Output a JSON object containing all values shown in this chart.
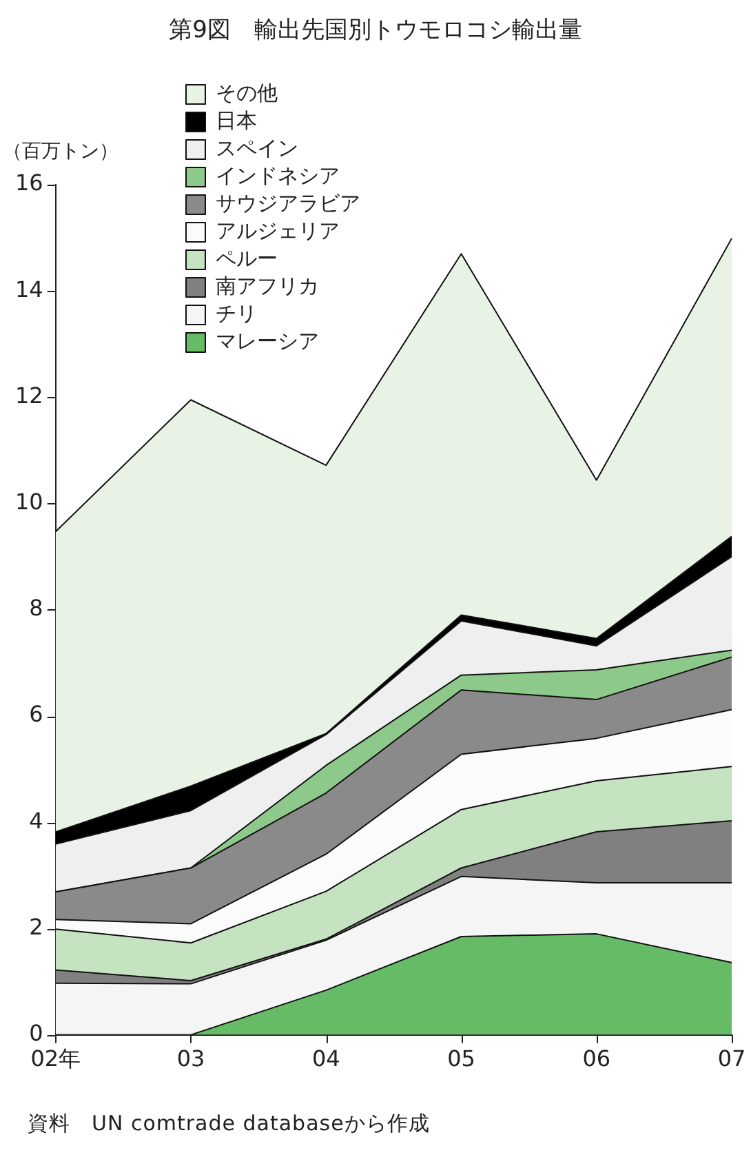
{
  "chart_data": {
    "type": "area",
    "title": "第9図　輸出先国別トウモロコシ輸出量",
    "ylabel": "（百万トン）",
    "stacked": true,
    "categories": [
      "02年",
      "03",
      "04",
      "05",
      "06",
      "07"
    ],
    "ylim": [
      0,
      16
    ],
    "yticks": [
      0,
      2,
      4,
      6,
      8,
      10,
      12,
      14,
      16
    ],
    "grid": false,
    "legend": "top left",
    "marker": "none",
    "series": [
      {
        "name": "マレーシア",
        "color": "#66bb66",
        "values": [
          0,
          0,
          0.84,
          1.85,
          1.9,
          1.36
        ]
      },
      {
        "name": "チリ",
        "color": "#f5f5f5",
        "values": [
          0.97,
          0.96,
          0.94,
          1.13,
          0.96,
          1.5
        ]
      },
      {
        "name": "南アフリカ",
        "color": "#808080",
        "values": [
          0.25,
          0.06,
          0.02,
          0.16,
          0.96,
          1.17
        ]
      },
      {
        "name": "ペルー",
        "color": "#c5e3c0",
        "values": [
          0.77,
          0.71,
          0.9,
          1.1,
          0.96,
          1.02
        ]
      },
      {
        "name": "アルジェリア",
        "color": "#fbfbfb",
        "values": [
          0.18,
          0.36,
          0.7,
          1.04,
          0.8,
          1.07
        ]
      },
      {
        "name": "サウジアラビア",
        "color": "#8a8a8a",
        "values": [
          0.52,
          1.05,
          1.15,
          1.21,
          0.73,
          0.99
        ]
      },
      {
        "name": "インドネシア",
        "color": "#8cc98a",
        "values": [
          0,
          0,
          0.52,
          0.28,
          0.56,
          0.13
        ]
      },
      {
        "name": "スペイン",
        "color": "#efefef",
        "values": [
          0.9,
          1.08,
          0.58,
          1.02,
          0.45,
          1.76
        ]
      },
      {
        "name": "日本",
        "color": "#000000",
        "values": [
          0.23,
          0.46,
          0.02,
          0.11,
          0.14,
          0.38
        ]
      },
      {
        "name": "その他",
        "color": "#e8f2e5",
        "values": [
          5.65,
          7.27,
          5.05,
          6.8,
          2.98,
          5.61
        ]
      }
    ],
    "annotations": [
      "資料　UN comtrade databaseから作成"
    ]
  }
}
